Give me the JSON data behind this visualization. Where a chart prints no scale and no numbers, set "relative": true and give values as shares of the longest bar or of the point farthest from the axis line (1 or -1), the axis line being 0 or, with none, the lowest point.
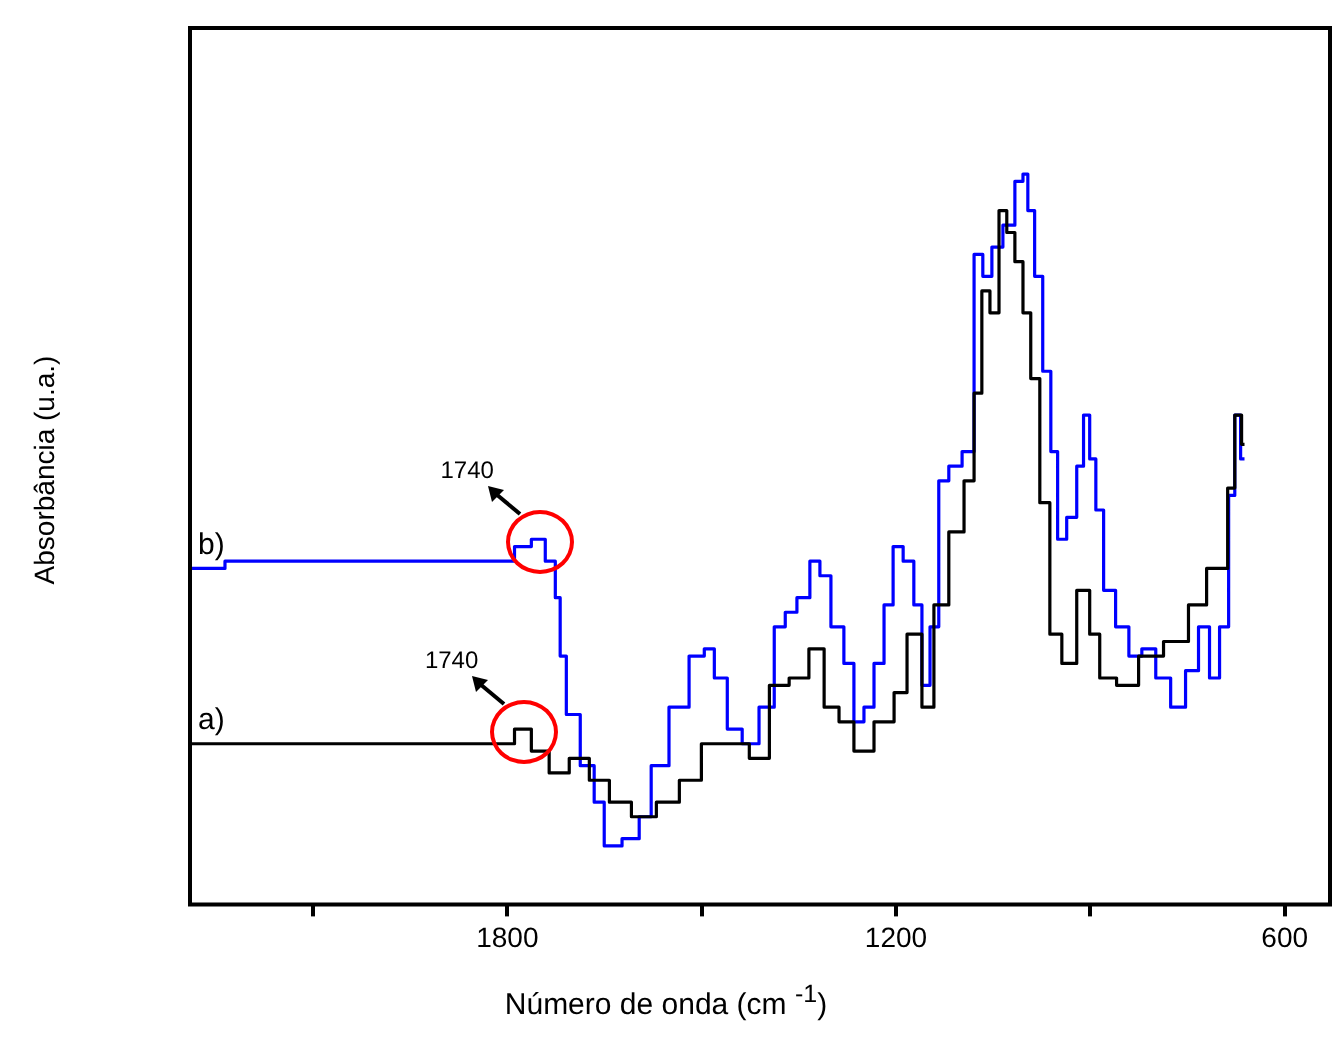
{
  "chart_data": {
    "type": "step",
    "relative": true,
    "xlabel": "Número de onda (cm $^{-1}$)",
    "ylabel": "Absorbância (u.a.)",
    "xlim": [
      2290,
      530
    ],
    "xticks": [
      {
        "value": 2100,
        "label": null
      },
      1800,
      {
        "value": 1500,
        "label": null
      },
      1200,
      {
        "value": 900,
        "label": null
      },
      600
    ],
    "grid": false,
    "legend": false,
    "tick_labels": "x",
    "series": [
      {
        "name": "a)",
        "color": "#000000",
        "x": [
          2290,
          1803,
          1775,
          1751,
          1720,
          1689,
          1658,
          1627,
          1590,
          1550,
          1519,
          1482,
          1442,
          1411,
          1380,
          1350,
          1319,
          1303,
          1273,
          1257,
          1211,
          1195,
          1171,
          1149,
          1134,
          1103,
          1087,
          1072,
          1063,
          1047,
          1035,
          1023,
          1010,
          998,
          986,
          970,
          955,
          933,
          909,
          893,
          878,
          841,
          810,
          764,
          733,
          708,
          693,
          683,
          671,
          662
        ],
        "values": [
          0.22,
          0.22,
          0.24,
          0.21,
          0.18,
          0.2,
          0.17,
          0.14,
          0.12,
          0.14,
          0.17,
          0.22,
          0.22,
          0.2,
          0.3,
          0.31,
          0.35,
          0.27,
          0.25,
          0.21,
          0.25,
          0.29,
          0.37,
          0.27,
          0.41,
          0.51,
          0.58,
          0.7,
          0.84,
          0.81,
          0.95,
          0.92,
          0.88,
          0.81,
          0.72,
          0.55,
          0.37,
          0.33,
          0.43,
          0.37,
          0.31,
          0.3,
          0.34,
          0.36,
          0.41,
          0.46,
          0.46,
          0.57,
          0.67,
          0.63
        ]
      },
      {
        "name": "b)",
        "color": "#0000ff",
        "x": [
          2290,
          2182,
          1997,
          1803,
          1775,
          1751,
          1732,
          1720,
          1717,
          1701,
          1674,
          1658,
          1643,
          1603,
          1590,
          1566,
          1535,
          1504,
          1488,
          1473,
          1448,
          1427,
          1396,
          1380,
          1362,
          1344,
          1322,
          1313,
          1288,
          1273,
          1257,
          1242,
          1226,
          1211,
          1198,
          1180,
          1165,
          1155,
          1140,
          1128,
          1109,
          1087,
          1072,
          1060,
          1044,
          1026,
          1007,
          1001,
          992,
          980,
          967,
          955,
          946,
          927,
          915,
          906,
          896,
          887,
          872,
          850,
          831,
          810,
          788,
          764,
          742,
          724,
          708,
          693,
          680,
          674,
          662
        ],
        "values": [
          0.46,
          0.47,
          0.47,
          0.47,
          0.49,
          0.5,
          0.47,
          0.42,
          0.34,
          0.26,
          0.19,
          0.14,
          0.08,
          0.09,
          0.12,
          0.19,
          0.27,
          0.34,
          0.35,
          0.31,
          0.24,
          0.22,
          0.27,
          0.38,
          0.4,
          0.42,
          0.47,
          0.45,
          0.38,
          0.33,
          0.25,
          0.27,
          0.33,
          0.41,
          0.49,
          0.47,
          0.41,
          0.3,
          0.38,
          0.58,
          0.6,
          0.62,
          0.89,
          0.86,
          0.9,
          0.93,
          0.99,
          1,
          0.95,
          0.86,
          0.73,
          0.62,
          0.5,
          0.53,
          0.6,
          0.67,
          0.61,
          0.54,
          0.43,
          0.38,
          0.34,
          0.35,
          0.31,
          0.27,
          0.32,
          0.38,
          0.31,
          0.38,
          0.56,
          0.67,
          0.61
        ]
      }
    ],
    "annotations": [
      {
        "text": "1740",
        "x": 1775,
        "y": 0.24
      },
      {
        "text": "1740",
        "x": 1751,
        "y": 0.5
      }
    ]
  }
}
